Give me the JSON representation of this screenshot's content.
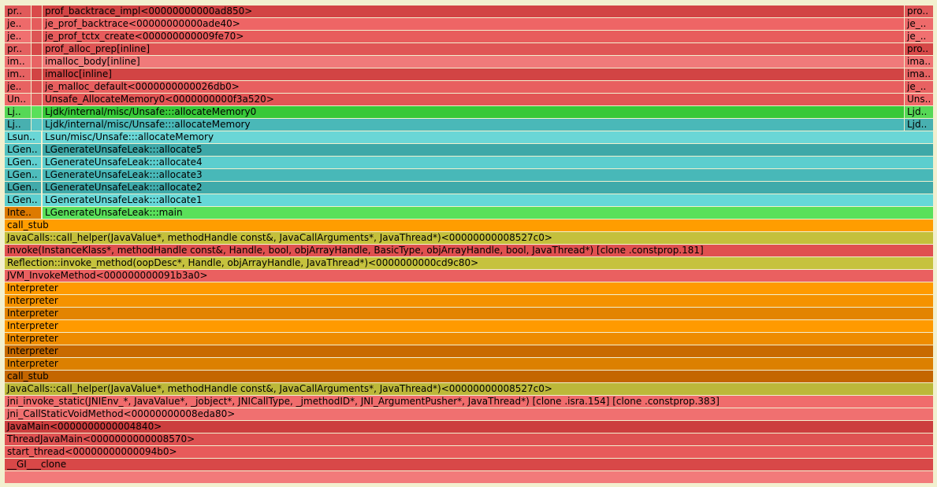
{
  "flamegraph": {
    "frames": [
      {
        "row": 0,
        "col": "left",
        "label": "pr..",
        "color": "#e05a5a"
      },
      {
        "row": 0,
        "col": "small",
        "label": "",
        "color": "#d94a4a"
      },
      {
        "row": 0,
        "col": "main",
        "label": "prof_backtrace_impl<00000000000ad850>",
        "color": "#d24444"
      },
      {
        "row": 0,
        "col": "right",
        "label": "pro..",
        "color": "#e05a5a"
      },
      {
        "row": 1,
        "col": "left",
        "label": "je..",
        "color": "#ee6a6a"
      },
      {
        "row": 1,
        "col": "small",
        "label": "",
        "color": "#e55c5c"
      },
      {
        "row": 1,
        "col": "main",
        "label": "je_prof_backtrace<00000000000ade40>",
        "color": "#ee6565"
      },
      {
        "row": 1,
        "col": "right",
        "label": "je_..",
        "color": "#ee6a6a"
      },
      {
        "row": 2,
        "col": "left",
        "label": "je..",
        "color": "#f07070"
      },
      {
        "row": 2,
        "col": "small",
        "label": "",
        "color": "#dd5555"
      },
      {
        "row": 2,
        "col": "main",
        "label": "je_prof_tctx_create<000000000009fe70>",
        "color": "#e85c5c"
      },
      {
        "row": 2,
        "col": "right",
        "label": "je_..",
        "color": "#f07070"
      },
      {
        "row": 3,
        "col": "left",
        "label": "pr..",
        "color": "#e46060"
      },
      {
        "row": 3,
        "col": "small",
        "label": "",
        "color": "#d64848"
      },
      {
        "row": 3,
        "col": "main",
        "label": "prof_alloc_prep[inline]",
        "color": "#e05555"
      },
      {
        "row": 3,
        "col": "right",
        "label": "pro..",
        "color": "#d64848"
      },
      {
        "row": 4,
        "col": "left",
        "label": "im..",
        "color": "#f07474"
      },
      {
        "row": 4,
        "col": "small",
        "label": "",
        "color": "#e86464"
      },
      {
        "row": 4,
        "col": "main",
        "label": "imalloc_body[inline]",
        "color": "#f07a7a"
      },
      {
        "row": 4,
        "col": "right",
        "label": "ima..",
        "color": "#f07474"
      },
      {
        "row": 5,
        "col": "left",
        "label": "im..",
        "color": "#e66262"
      },
      {
        "row": 5,
        "col": "small",
        "label": "",
        "color": "#d24444"
      },
      {
        "row": 5,
        "col": "main",
        "label": "imalloc[inline]",
        "color": "#d24444"
      },
      {
        "row": 5,
        "col": "right",
        "label": "ima..",
        "color": "#e66262"
      },
      {
        "row": 6,
        "col": "left",
        "label": "je..",
        "color": "#e86262"
      },
      {
        "row": 6,
        "col": "small",
        "label": "",
        "color": "#dd5252"
      },
      {
        "row": 6,
        "col": "main",
        "label": "je_malloc_default<0000000000026db0>",
        "color": "#e85f5f"
      },
      {
        "row": 6,
        "col": "right",
        "label": "je_..",
        "color": "#e86262"
      },
      {
        "row": 7,
        "col": "left",
        "label": "Un..",
        "color": "#ee6a6a"
      },
      {
        "row": 7,
        "col": "small",
        "label": "",
        "color": "#e05a5a"
      },
      {
        "row": 7,
        "col": "main",
        "label": "Unsafe_AllocateMemory0<0000000000f3a520>",
        "color": "#e25555"
      },
      {
        "row": 7,
        "col": "right",
        "label": "Uns..",
        "color": "#ee6a6a"
      },
      {
        "row": 8,
        "col": "left",
        "label": "Lj..",
        "color": "#56d856"
      },
      {
        "row": 8,
        "col": "small",
        "label": "",
        "color": "#5ae05a"
      },
      {
        "row": 8,
        "col": "main",
        "label": "Ljdk/internal/misc/Unsafe:::allocateMemory0",
        "color": "#38c838"
      },
      {
        "row": 8,
        "col": "right",
        "label": "Ljd..",
        "color": "#56d856"
      },
      {
        "row": 9,
        "col": "left",
        "label": "Lj..",
        "color": "#48b0b0"
      },
      {
        "row": 9,
        "col": "small",
        "label": "",
        "color": "#5ac6c6"
      },
      {
        "row": 9,
        "col": "main",
        "label": "Ljdk/internal/misc/Unsafe:::allocateMemory",
        "color": "#4ab8b8"
      },
      {
        "row": 9,
        "col": "right",
        "label": "Ljd..",
        "color": "#48b0b0"
      },
      {
        "row": 10,
        "col": "leftwide",
        "label": "Lsun..",
        "color": "#6ad6d6"
      },
      {
        "row": 10,
        "col": "mainwide",
        "label": "Lsun/misc/Unsafe:::allocateMemory",
        "color": "#6ad6d6"
      },
      {
        "row": 11,
        "col": "leftwide",
        "label": "LGen..",
        "color": "#50c0c0"
      },
      {
        "row": 11,
        "col": "mainwide",
        "label": "LGenerateUnsafeLeak:::allocate5",
        "color": "#3ea8a8"
      },
      {
        "row": 12,
        "col": "leftwide",
        "label": "LGen..",
        "color": "#60d0d0"
      },
      {
        "row": 12,
        "col": "mainwide",
        "label": "LGenerateUnsafeLeak:::allocate4",
        "color": "#5ccece"
      },
      {
        "row": 13,
        "col": "leftwide",
        "label": "LGen..",
        "color": "#4ebcbc"
      },
      {
        "row": 13,
        "col": "mainwide",
        "label": "LGenerateUnsafeLeak:::allocate3",
        "color": "#48b8b8"
      },
      {
        "row": 14,
        "col": "leftwide",
        "label": "LGen..",
        "color": "#42aaaa"
      },
      {
        "row": 14,
        "col": "mainwide",
        "label": "LGenerateUnsafeLeak:::allocate2",
        "color": "#40aaaa"
      },
      {
        "row": 15,
        "col": "leftwide",
        "label": "LGen..",
        "color": "#5ccece"
      },
      {
        "row": 15,
        "col": "mainwide",
        "label": "LGenerateUnsafeLeak:::allocate1",
        "color": "#66d8d8"
      },
      {
        "row": 16,
        "col": "leftwide",
        "label": "Inte..",
        "color": "#dd7a00"
      },
      {
        "row": 16,
        "col": "mainwide",
        "label": "LGenerateUnsafeLeak:::main",
        "color": "#5ae05a"
      },
      {
        "row": 17,
        "col": "full",
        "label": "call_stub",
        "color": "#ff9d00"
      },
      {
        "row": 18,
        "col": "full",
        "label": "JavaCalls::call_helper(JavaValue*, methodHandle const&, JavaCallArguments*, JavaThread*)<00000000008527c0>",
        "color": "#c4c03c"
      },
      {
        "row": 19,
        "col": "full",
        "label": "invoke(InstanceKlass*, methodHandle const&, Handle, bool, objArrayHandle, BasicType, objArrayHandle, bool, JavaThread*) [clone .constprop.181]",
        "color": "#e05050"
      },
      {
        "row": 20,
        "col": "full",
        "label": "Reflection::invoke_method(oopDesc*, Handle, objArrayHandle, JavaThread*)<0000000000cd9c80>",
        "color": "#c6c23e"
      },
      {
        "row": 21,
        "col": "full",
        "label": "JVM_InvokeMethod<000000000091b3a0>",
        "color": "#ea6060"
      },
      {
        "row": 22,
        "col": "full",
        "label": "Interpreter",
        "color": "#ff9a00"
      },
      {
        "row": 23,
        "col": "full",
        "label": "Interpreter",
        "color": "#f59200"
      },
      {
        "row": 24,
        "col": "full",
        "label": "Interpreter",
        "color": "#e38400"
      },
      {
        "row": 25,
        "col": "full",
        "label": "Interpreter",
        "color": "#ff9a00"
      },
      {
        "row": 26,
        "col": "full",
        "label": "Interpreter",
        "color": "#ee8c00"
      },
      {
        "row": 27,
        "col": "full",
        "label": "Interpreter",
        "color": "#c86a00"
      },
      {
        "row": 28,
        "col": "full",
        "label": "Interpreter",
        "color": "#dc8000"
      },
      {
        "row": 29,
        "col": "full",
        "label": "call_stub",
        "color": "#c46600"
      },
      {
        "row": 30,
        "col": "full",
        "label": "JavaCalls::call_helper(JavaValue*, methodHandle const&, JavaCallArguments*, JavaThread*)<00000000008527c0>",
        "color": "#bcb83a"
      },
      {
        "row": 31,
        "col": "full",
        "label": "jni_invoke_static(JNIEnv_*, JavaValue*, _jobject*, JNICallType, _jmethodID*, JNI_ArgumentPusher*, JavaThread*) [clone .isra.154] [clone .constprop.383]",
        "color": "#f06c6c"
      },
      {
        "row": 32,
        "col": "full",
        "label": "jni_CallStaticVoidMethod<00000000008eda80>",
        "color": "#f07070"
      },
      {
        "row": 33,
        "col": "full",
        "label": "JavaMain<0000000000004840>",
        "color": "#cc3e3e"
      },
      {
        "row": 34,
        "col": "full",
        "label": "ThreadJavaMain<0000000000008570>",
        "color": "#de5252"
      },
      {
        "row": 35,
        "col": "full",
        "label": "start_thread<00000000000094b0>",
        "color": "#e85a5a"
      },
      {
        "row": 36,
        "col": "full",
        "label": "__GI___clone",
        "color": "#d84848"
      },
      {
        "row": 37,
        "col": "full",
        "label": "",
        "color": "#f27a7a"
      }
    ]
  }
}
